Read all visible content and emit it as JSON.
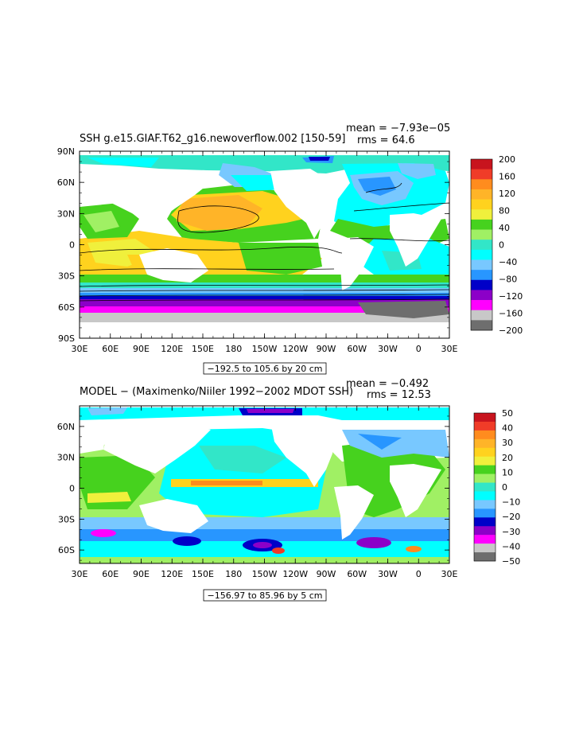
{
  "chart_data": [
    {
      "type": "heatmap",
      "title": "SSH g.e15.GIAF.T62_g16.newoverflow.002 [150-59]",
      "stats": {
        "mean": "mean = −7.93e−05",
        "rms": "rms = 64.6"
      },
      "contour_info": "−192.5 to 105.6 by 20 cm",
      "xticks": [
        "30E",
        "60E",
        "90E",
        "120E",
        "150E",
        "180",
        "150W",
        "120W",
        "90W",
        "60W",
        "30W",
        "0",
        "30E"
      ],
      "yticks": [
        "90N",
        "60N",
        "30N",
        "0",
        "30S",
        "60S",
        "90S"
      ],
      "ylim": [
        -90,
        90
      ],
      "colorbar": {
        "labels": [
          "200",
          "160",
          "120",
          "80",
          "40",
          "0",
          "−40",
          "−80",
          "−120",
          "−160",
          "−200"
        ],
        "colors": [
          "#c8141e",
          "#f03c28",
          "#ff8c1e",
          "#ffb428",
          "#ffd21e",
          "#f0f03c",
          "#46d21e",
          "#a0f064",
          "#32e6c8",
          "#00ffff",
          "#78c8ff",
          "#2896ff",
          "#0000c8",
          "#8c00c8",
          "#ff00ff",
          "#c8c8c8",
          "#6e6e6e"
        ]
      }
    },
    {
      "type": "heatmap",
      "title": "MODEL − (Maximenko/Niiler 1992−2002 MDOT SSH)",
      "stats": {
        "mean": "mean = −0.492",
        "rms": "rms = 12.53"
      },
      "contour_info": "−156.97 to 85.96 by 5 cm",
      "xticks": [
        "30E",
        "60E",
        "90E",
        "120E",
        "150E",
        "180",
        "150W",
        "120W",
        "90W",
        "60W",
        "30W",
        "0",
        "30E"
      ],
      "yticks": [
        "60N",
        "30N",
        "0",
        "30S",
        "60S"
      ],
      "ylim": [
        -73,
        80
      ],
      "colorbar": {
        "labels": [
          "50",
          "40",
          "30",
          "20",
          "10",
          "0",
          "−10",
          "−20",
          "−30",
          "−40",
          "−50"
        ],
        "colors": [
          "#c8141e",
          "#f03c28",
          "#ff8c1e",
          "#ffb428",
          "#ffd21e",
          "#f0f03c",
          "#46d21e",
          "#a0f064",
          "#32e6c8",
          "#00ffff",
          "#78c8ff",
          "#2896ff",
          "#0000c8",
          "#8c00c8",
          "#ff00ff",
          "#c8c8c8",
          "#6e6e6e"
        ]
      }
    }
  ]
}
